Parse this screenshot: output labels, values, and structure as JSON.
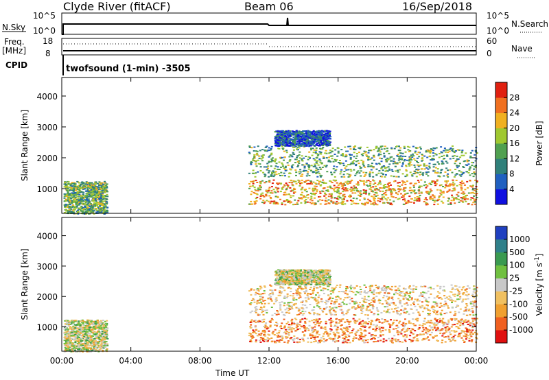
{
  "header": {
    "station": "Clyde River (fitACF)",
    "beam": "Beam 06",
    "date": "16/Sep/2018"
  },
  "status_panel": {
    "nsky_label": "N.Sky",
    "nsky_ticks": [
      "10^5",
      "10^0"
    ],
    "nsearch_label": "N.Search",
    "nsearch_ticks": [
      "10^5",
      "10^0"
    ],
    "freq_label": "Freq.",
    "freq_unit": "[MHz]",
    "freq_ticks": [
      "18",
      "8"
    ],
    "nave_label": "Nave",
    "nave_ticks": [
      "60",
      "0"
    ],
    "cpid_label": "CPID",
    "cpid_text": "twofsound (1-min) -3505"
  },
  "chart_data": [
    {
      "type": "heatmap",
      "name": "power",
      "ylabel": "Slant Range [km]",
      "xlabel": "",
      "x_ticks": [
        "00:00",
        "04:00",
        "08:00",
        "12:00",
        "16:00",
        "20:00",
        "00:00"
      ],
      "x_hours": [
        0,
        4,
        8,
        12,
        16,
        20,
        24
      ],
      "xlim": [
        0,
        24
      ],
      "ylim": [
        200,
        4600
      ],
      "y_ticks": [
        1000,
        2000,
        3000,
        4000
      ],
      "colorbar_label": "Power [dB]",
      "colorbar_ticks": [
        "4",
        "8",
        "12",
        "16",
        "20",
        "24",
        "28"
      ],
      "colorbar_colors": [
        "#1010e0",
        "#2060c0",
        "#30807a",
        "#50a050",
        "#a0c830",
        "#f0b020",
        "#f07020",
        "#e02010"
      ],
      "scatter_regions": [
        {
          "t": [
            0.1,
            2.6
          ],
          "r": [
            200,
            1250
          ],
          "level": 3
        },
        {
          "t": [
            10.8,
            24
          ],
          "r": [
            500,
            1300
          ],
          "level": 5
        },
        {
          "t": [
            10.8,
            24
          ],
          "r": [
            1400,
            2400
          ],
          "level": 3
        },
        {
          "t": [
            12.3,
            15.5
          ],
          "r": [
            2400,
            2900
          ],
          "level": 1
        }
      ]
    },
    {
      "type": "heatmap",
      "name": "velocity",
      "ylabel": "Slant Range [km]",
      "xlabel": "Time UT",
      "x_ticks": [
        "00:00",
        "04:00",
        "08:00",
        "12:00",
        "16:00",
        "20:00",
        "00:00"
      ],
      "x_hours": [
        0,
        4,
        8,
        12,
        16,
        20,
        24
      ],
      "xlim": [
        0,
        24
      ],
      "ylim": [
        200,
        4600
      ],
      "y_ticks": [
        1000,
        2000,
        3000,
        4000
      ],
      "colorbar_label": "Velocity [m s",
      "colorbar_label_sup": "-1",
      "colorbar_label_end": "]",
      "colorbar_ticks": [
        "1000",
        "500",
        "100",
        "25",
        "-25",
        "-100",
        "-500",
        "-1000"
      ],
      "colorbar_colors": [
        "#2040c0",
        "#30808a",
        "#3a9a50",
        "#70c040",
        "#c8c8c8",
        "#f0c060",
        "#f0a030",
        "#f06020",
        "#e01010"
      ],
      "scatter_regions": [
        {
          "t": [
            0.1,
            2.6
          ],
          "r": [
            200,
            1250
          ],
          "level": 4
        },
        {
          "t": [
            10.8,
            24
          ],
          "r": [
            500,
            1300
          ],
          "level": 6
        },
        {
          "t": [
            10.8,
            24
          ],
          "r": [
            1400,
            2400
          ],
          "level": 5
        },
        {
          "t": [
            12.3,
            15.5
          ],
          "r": [
            2400,
            2900
          ],
          "level": 4
        }
      ]
    }
  ]
}
